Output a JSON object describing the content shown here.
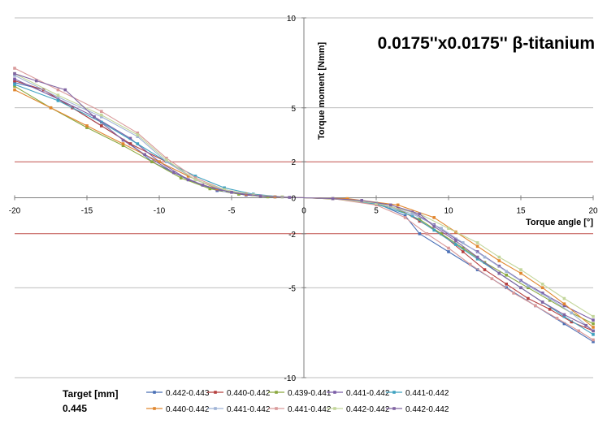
{
  "chart_data": {
    "type": "line",
    "title": "0.0175''x0.0175'' β-titanium",
    "xlabel": "Torque angle [°]",
    "ylabel": "Torque moment [Nmm]",
    "xlim": [
      -20,
      20
    ],
    "ylim": [
      -10,
      10
    ],
    "x_ticks": [
      -20,
      -15,
      -10,
      -5,
      0,
      5,
      10,
      15,
      20
    ],
    "y_ticks": [
      -10,
      -5,
      -2,
      0,
      2,
      5,
      10
    ],
    "reference_lines": [
      2,
      -2
    ],
    "grid": "horizontal",
    "legend_position": "bottom",
    "target_label": "Target [mm]",
    "target_value": "0.445",
    "series": [
      {
        "name": "0.442-0.443",
        "color": "#4a6fb5",
        "x": [
          -20,
          -18,
          -16,
          -14,
          -12,
          -10.5,
          -8,
          -6,
          -4,
          -2,
          0,
          2,
          5,
          7,
          8,
          10,
          12,
          14,
          16,
          18,
          20
        ],
        "y": [
          6.4,
          6.0,
          5.0,
          4.0,
          3.0,
          2.0,
          1.0,
          0.4,
          0.15,
          0.05,
          0,
          -0.05,
          -0.3,
          -1.0,
          -2.0,
          -3.0,
          -4.0,
          -5.0,
          -6.0,
          -7.0,
          -8.0
        ]
      },
      {
        "name": "0.440-0.442",
        "color": "#b5403f",
        "x": [
          -20,
          -18,
          -16,
          -14,
          -12,
          -9.5,
          -7.5,
          -5.5,
          -3,
          0,
          3,
          6.5,
          8,
          9.5,
          11,
          12.5,
          14,
          15.5,
          17,
          18.5,
          20
        ],
        "y": [
          6.5,
          6.0,
          5.0,
          4.0,
          3.0,
          2.0,
          1.0,
          0.4,
          0.1,
          0,
          -0.1,
          -0.6,
          -1.3,
          -2.0,
          -3.0,
          -4.0,
          -4.8,
          -5.6,
          -6.2,
          -6.9,
          -7.4
        ]
      },
      {
        "name": "0.439-0.441",
        "color": "#8aa83f",
        "x": [
          -20,
          -17.5,
          -15,
          -12.5,
          -10.5,
          -8.5,
          -6.5,
          -4.5,
          -2.5,
          0,
          3,
          6,
          8,
          9.5,
          11,
          12.5,
          14,
          15.5,
          17,
          18.5,
          20
        ],
        "y": [
          6.2,
          5.0,
          3.9,
          2.9,
          2.0,
          1.1,
          0.5,
          0.2,
          0.05,
          0,
          -0.1,
          -0.5,
          -1.2,
          -2.0,
          -2.8,
          -3.6,
          -4.3,
          -5.0,
          -5.7,
          -6.4,
          -7.0
        ]
      },
      {
        "name": "0.441-0.442",
        "color": "#7b5ea7",
        "x": [
          -20,
          -17,
          -14.5,
          -12,
          -10,
          -8,
          -6,
          -4,
          -2,
          0,
          2,
          5,
          7.5,
          9,
          10.5,
          12,
          13.5,
          15,
          16.5,
          18,
          20
        ],
        "y": [
          6.6,
          5.5,
          4.5,
          3.3,
          2.0,
          1.0,
          0.45,
          0.15,
          0.05,
          0,
          -0.05,
          -0.3,
          -0.8,
          -1.5,
          -2.3,
          -3.0,
          -3.8,
          -4.6,
          -5.3,
          -6.0,
          -6.8
        ]
      },
      {
        "name": "0.441-0.442",
        "color": "#3fa2c0",
        "x": [
          -20,
          -17,
          -14,
          -11.5,
          -9.5,
          -7.5,
          -5.5,
          -3.5,
          -1.5,
          0,
          2,
          5,
          7.5,
          9,
          10.5,
          12,
          13.5,
          15,
          16.5,
          18,
          20
        ],
        "y": [
          6.3,
          5.4,
          4.2,
          3.0,
          2.0,
          1.2,
          0.55,
          0.2,
          0.05,
          0,
          -0.05,
          -0.35,
          -1.0,
          -1.8,
          -2.6,
          -3.4,
          -4.2,
          -5.0,
          -5.8,
          -6.6,
          -7.6
        ]
      },
      {
        "name": "0.440-0.442",
        "color": "#e0862e",
        "x": [
          -20,
          -17.5,
          -15,
          -12.5,
          -10,
          -8,
          -6,
          -4,
          -2,
          0,
          3,
          6.5,
          9,
          10.5,
          12,
          13.5,
          15,
          16.5,
          18,
          20
        ],
        "y": [
          6.0,
          5.0,
          4.0,
          3.0,
          2.0,
          1.2,
          0.5,
          0.2,
          0.05,
          0,
          -0.05,
          -0.4,
          -1.1,
          -1.9,
          -2.7,
          -3.5,
          -4.2,
          -5.0,
          -5.9,
          -7.2
        ]
      },
      {
        "name": "0.441-0.442",
        "color": "#9fb3d6",
        "x": [
          -20,
          -17,
          -14,
          -11.5,
          -9.5,
          -7.5,
          -5.5,
          -3.5,
          -1.5,
          0,
          2,
          5,
          7.5,
          9.5,
          11,
          12.5,
          14,
          15.5,
          17,
          18.5,
          20
        ],
        "y": [
          6.8,
          5.6,
          4.5,
          3.4,
          2.0,
          1.0,
          0.4,
          0.15,
          0.05,
          0,
          -0.05,
          -0.3,
          -0.9,
          -1.7,
          -2.5,
          -3.3,
          -4.1,
          -4.9,
          -5.6,
          -6.4,
          -7.4
        ]
      },
      {
        "name": "0.441-0.442",
        "color": "#d99a9a",
        "x": [
          -20,
          -17,
          -14,
          -11.5,
          -9.5,
          -7.5,
          -5.5,
          -3.5,
          -1.5,
          0,
          2,
          5,
          7,
          8.5,
          10,
          11.5,
          13,
          14.5,
          16,
          17.5,
          19,
          20
        ],
        "y": [
          7.2,
          6.0,
          4.8,
          3.6,
          2.2,
          1.1,
          0.45,
          0.15,
          0.05,
          0,
          -0.05,
          -0.4,
          -1.1,
          -2.0,
          -2.8,
          -3.7,
          -4.5,
          -5.3,
          -6.0,
          -6.7,
          -7.4,
          -7.9
        ]
      },
      {
        "name": "0.442-0.442",
        "color": "#c3d69b",
        "x": [
          -20,
          -17,
          -14,
          -11.5,
          -9.5,
          -7.5,
          -5.5,
          -3.5,
          -1.5,
          0,
          2,
          5,
          8,
          10,
          12,
          13.5,
          15,
          16.5,
          18,
          20
        ],
        "y": [
          6.9,
          5.7,
          4.6,
          3.5,
          2.1,
          1.0,
          0.45,
          0.15,
          0.05,
          0,
          -0.05,
          -0.3,
          -0.9,
          -1.7,
          -2.5,
          -3.3,
          -4.0,
          -4.8,
          -5.6,
          -6.6
        ]
      },
      {
        "name": "0.442-0.442",
        "color": "#8064a2",
        "x": [
          -20,
          -18.5,
          -16.5,
          -14.5,
          -12.5,
          -11,
          -9,
          -7,
          -5,
          -3,
          -1,
          0,
          2,
          4,
          6,
          8,
          9,
          10.5,
          12,
          13.5,
          15,
          16.5,
          18,
          19.5,
          20
        ],
        "y": [
          6.9,
          6.5,
          6.0,
          4.5,
          3.2,
          2.4,
          1.4,
          0.7,
          0.3,
          0.1,
          0.02,
          0,
          -0.05,
          -0.15,
          -0.4,
          -0.9,
          -1.6,
          -2.4,
          -3.3,
          -4.2,
          -5.0,
          -5.8,
          -6.5,
          -7.1,
          -7.4
        ]
      }
    ]
  }
}
